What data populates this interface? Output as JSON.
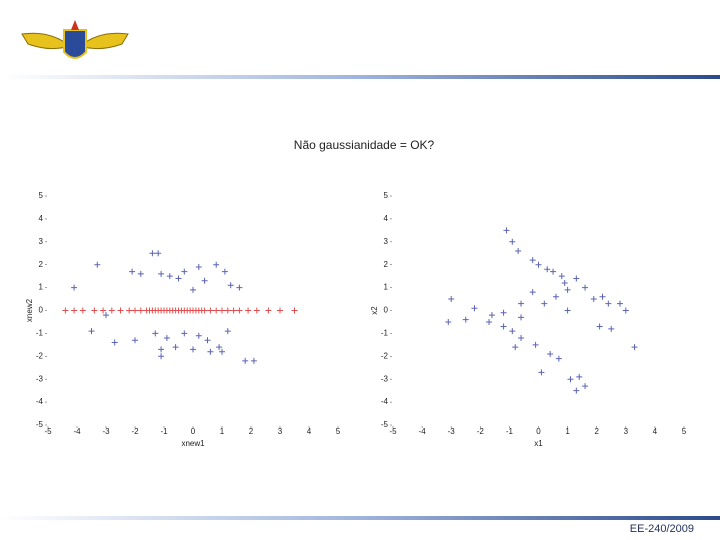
{
  "title": "Não gaussianidade = OK?",
  "footer": "EE-240/2009",
  "chart_data": [
    {
      "type": "scatter",
      "xlabel": "xnew1",
      "ylabel": "xnew2",
      "xlim": [
        -5,
        5
      ],
      "ylim": [
        -5,
        5
      ],
      "xticks": [
        -5,
        -4,
        -3,
        -2,
        -1,
        0,
        1,
        2,
        3,
        4,
        5
      ],
      "yticks": [
        -5,
        -4,
        -3,
        -2,
        -1,
        0,
        1,
        2,
        3,
        4,
        5
      ],
      "series": [
        {
          "color": "#e05050",
          "x": [
            -4.4,
            -4.1,
            -3.8,
            -3.4,
            -3.1,
            -2.8,
            -2.5,
            -2.2,
            -2.0,
            -1.8,
            -1.6,
            -1.5,
            -1.4,
            -1.3,
            -1.2,
            -1.1,
            -1.0,
            -0.9,
            -0.8,
            -0.7,
            -0.6,
            -0.5,
            -0.4,
            -0.3,
            -0.2,
            -0.1,
            0.0,
            0.1,
            0.2,
            0.3,
            0.4,
            0.6,
            0.8,
            1.0,
            1.2,
            1.4,
            1.6,
            1.9,
            2.2,
            2.6,
            3.0,
            3.5
          ],
          "values": [
            0,
            0,
            0,
            0,
            0,
            0,
            0,
            0,
            0,
            0,
            0,
            0,
            0,
            0,
            0,
            0,
            0,
            0,
            0,
            0,
            0,
            0,
            0,
            0,
            0,
            0,
            0,
            0,
            0,
            0,
            0,
            0,
            0,
            0,
            0,
            0,
            0,
            0,
            0,
            0,
            0,
            0
          ]
        },
        {
          "color": "#5a64b4",
          "x": [
            -1.4,
            -1.2,
            -2.1,
            -1.8,
            -1.1,
            -0.8,
            -0.3,
            0.2,
            0.8,
            1.1,
            0.4,
            0.0,
            -0.5,
            1.3,
            1.6,
            -3.3,
            -4.1,
            -3.0,
            -3.5,
            -2.7,
            -2.0,
            -1.3,
            -0.9,
            -0.3,
            0.2,
            0.5,
            -1.1,
            -0.6,
            0.0,
            0.6,
            0.9,
            1.0,
            1.8,
            2.1,
            -1.1,
            1.2
          ],
          "values": [
            2.5,
            2.5,
            1.7,
            1.6,
            1.6,
            1.5,
            1.7,
            1.9,
            2.0,
            1.7,
            1.3,
            0.9,
            1.4,
            1.1,
            1.0,
            2.0,
            1.0,
            -0.2,
            -0.9,
            -1.4,
            -1.3,
            -1.0,
            -1.2,
            -1.0,
            -1.1,
            -1.3,
            -1.7,
            -1.6,
            -1.7,
            -1.8,
            -1.6,
            -1.8,
            -2.2,
            -2.2,
            -2.0,
            -0.9
          ]
        }
      ]
    },
    {
      "type": "scatter",
      "xlabel": "x1",
      "ylabel": "x2",
      "xlim": [
        -5,
        5
      ],
      "ylim": [
        -5,
        5
      ],
      "xticks": [
        -5,
        -4,
        -3,
        -2,
        -1,
        0,
        1,
        2,
        3,
        4,
        5
      ],
      "yticks": [
        -5,
        -4,
        -3,
        -2,
        -1,
        0,
        1,
        2,
        3,
        4,
        5
      ],
      "series": [
        {
          "color": "#5a64b4",
          "x": [
            -1.1,
            -0.9,
            -0.7,
            -0.2,
            0.0,
            0.3,
            0.5,
            0.8,
            0.9,
            1.0,
            1.3,
            1.6,
            1.9,
            2.2,
            2.4,
            2.8,
            3.0,
            2.5,
            2.1,
            3.3,
            1.0,
            0.6,
            -0.2,
            -0.6,
            -1.2,
            -1.6,
            -2.2,
            -2.5,
            -3.1,
            -1.7,
            -1.2,
            -0.9,
            -0.6,
            -0.6,
            -0.8,
            -0.1,
            0.4,
            0.7,
            1.1,
            1.3,
            1.4,
            1.6,
            0.1,
            -3.0,
            0.2
          ],
          "values": [
            3.5,
            3.0,
            2.6,
            2.2,
            2.0,
            1.8,
            1.7,
            1.5,
            1.2,
            0.9,
            1.4,
            1.0,
            0.5,
            0.6,
            0.3,
            0.3,
            0.0,
            -0.8,
            -0.7,
            -1.6,
            0.0,
            0.6,
            0.8,
            0.3,
            -0.1,
            -0.2,
            0.1,
            -0.4,
            -0.5,
            -0.5,
            -0.7,
            -0.9,
            -0.3,
            -1.2,
            -1.6,
            -1.5,
            -1.9,
            -2.1,
            -3.0,
            -3.5,
            -2.9,
            -3.3,
            -2.7,
            0.5,
            0.3
          ]
        }
      ]
    }
  ]
}
